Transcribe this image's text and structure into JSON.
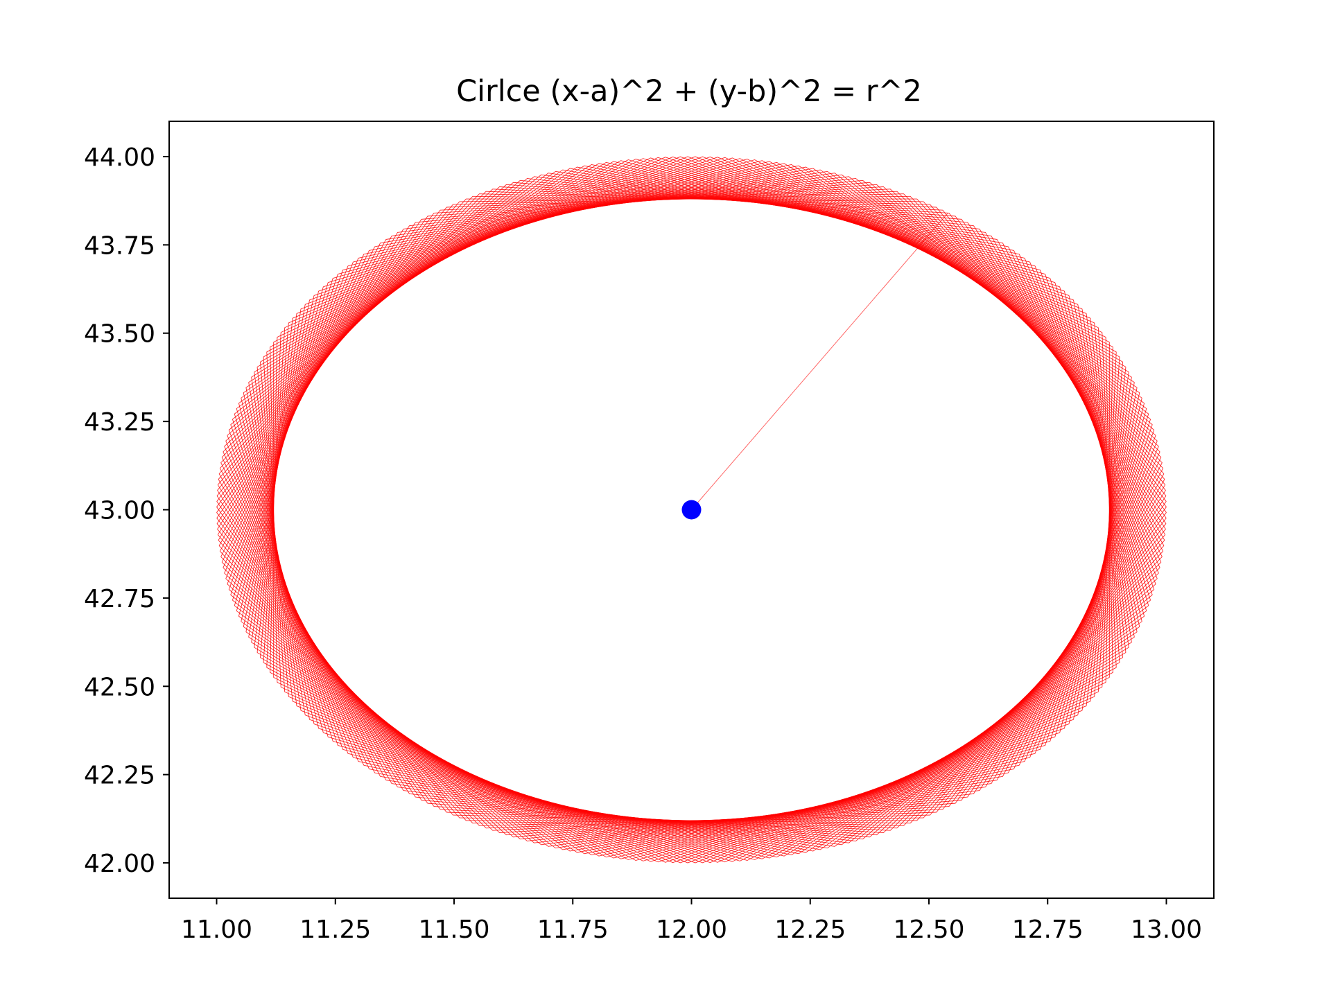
{
  "chart_data": {
    "type": "line",
    "title": "Cirlce (x-a)^2 + (y-b)^2 = r^2",
    "xlabel": "",
    "ylabel": "",
    "xlim": [
      10.9,
      13.1
    ],
    "ylim": [
      41.9,
      44.1
    ],
    "x_ticks": [
      "11.00",
      "11.25",
      "11.50",
      "11.75",
      "12.00",
      "12.25",
      "12.50",
      "12.75",
      "13.00"
    ],
    "y_ticks": [
      "42.00",
      "42.25",
      "42.50",
      "42.75",
      "43.00",
      "43.25",
      "43.50",
      "43.75",
      "44.00"
    ],
    "grid": false,
    "legend": "none",
    "center": {
      "x": 12.0,
      "y": 43.0,
      "color": "#0000ff"
    },
    "radius_line": {
      "x": [
        12.0,
        12.54
      ],
      "y": [
        43.0,
        43.84
      ],
      "color": "#ff0000"
    },
    "ring": {
      "r_outer": 1.0,
      "r_inner": 0.88,
      "n_lines": 400,
      "color": "#ff0000"
    }
  }
}
